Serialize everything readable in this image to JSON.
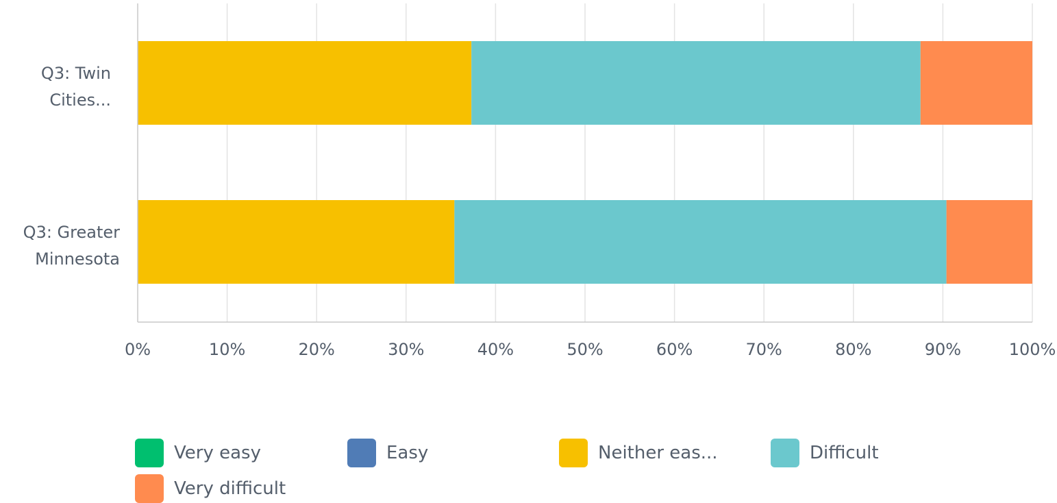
{
  "chart_data": {
    "type": "bar",
    "orientation": "horizontal",
    "stacked": true,
    "categories": [
      [
        "Q3: Twin",
        "Cities..."
      ],
      [
        "Q3: Greater",
        "Minnesota"
      ]
    ],
    "series": [
      {
        "name": "Very easy",
        "color": "#00bf6f",
        "values": [
          0,
          0
        ]
      },
      {
        "name": "Easy",
        "color": "#507cb6",
        "values": [
          0,
          0
        ]
      },
      {
        "name": "Neither eas...",
        "color": "#f7c000",
        "values": [
          37.3,
          35.4
        ]
      },
      {
        "name": "Difficult",
        "color": "#6bc8cd",
        "values": [
          50.2,
          55.0
        ]
      },
      {
        "name": "Very difficult",
        "color": "#ff8b4f",
        "values": [
          12.5,
          9.6
        ]
      }
    ],
    "xlim": [
      0,
      100
    ],
    "xticks": [
      "0%",
      "10%",
      "20%",
      "30%",
      "40%",
      "50%",
      "60%",
      "70%",
      "80%",
      "90%",
      "100%"
    ],
    "grid": true,
    "legend_position": "bottom"
  }
}
